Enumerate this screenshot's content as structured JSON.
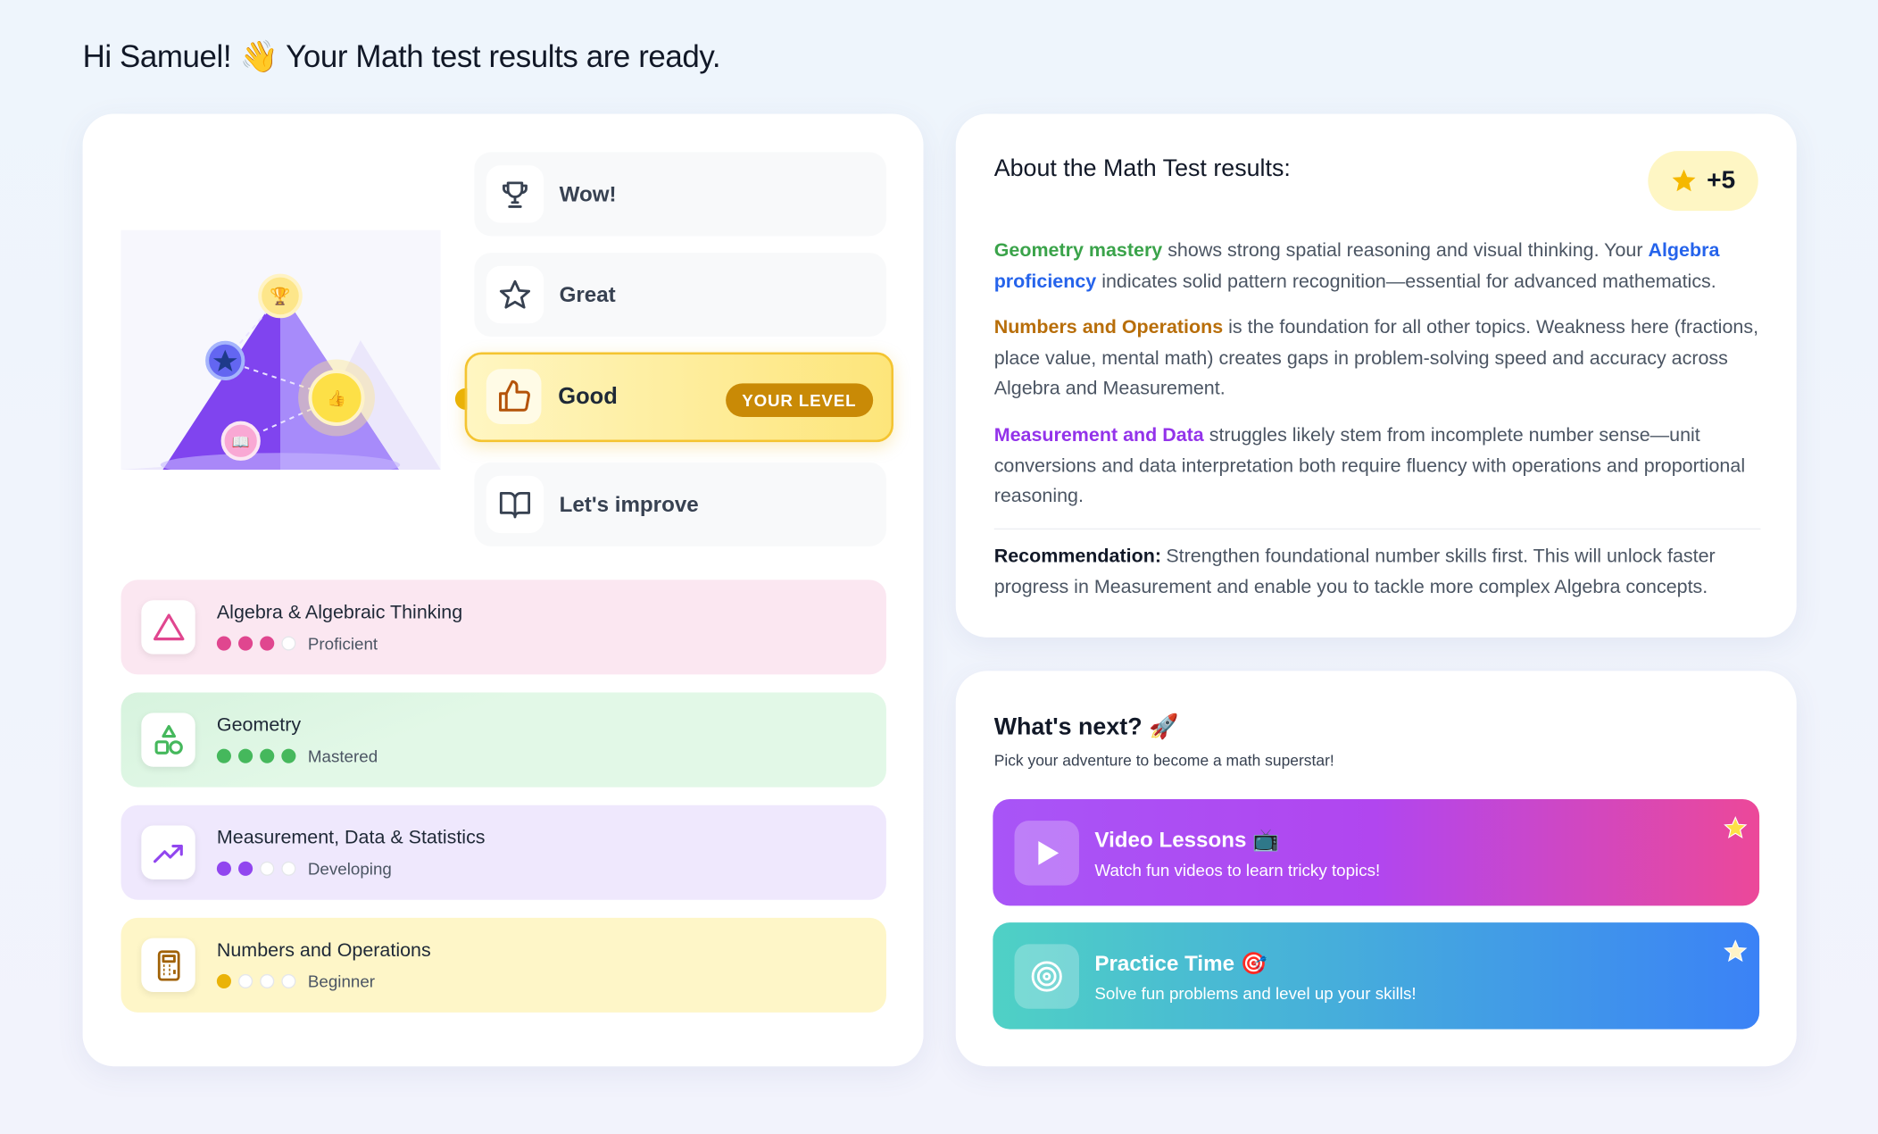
{
  "greeting": "Hi Samuel! 👋 Your Math test results are ready.",
  "levels": [
    {
      "label": "Wow!"
    },
    {
      "label": "Great"
    },
    {
      "label": "Good",
      "badge": "YOUR LEVEL"
    },
    {
      "label": "Let's improve"
    }
  ],
  "skills": [
    {
      "name": "Algebra & Algebraic Thinking",
      "status": "Proficient",
      "filled": 3,
      "total": 4,
      "color": "#e0468f"
    },
    {
      "name": "Geometry",
      "status": "Mastered",
      "filled": 4,
      "total": 4,
      "color": "#45b85c"
    },
    {
      "name": "Measurement, Data & Statistics",
      "status": "Developing",
      "filled": 2,
      "total": 4,
      "color": "#9146ef"
    },
    {
      "name": "Numbers and Operations",
      "status": "Beginner",
      "filled": 1,
      "total": 4,
      "color": "#eab308"
    }
  ],
  "about": {
    "title": "About the Math Test results:",
    "points": "+5",
    "paragraphs": [
      [
        {
          "text": "Geometry mastery",
          "color": "#3aa34a"
        },
        {
          "text": " shows strong spatial reasoning and visual thinking. Your "
        },
        {
          "text": "Algebra proficiency",
          "color": "#2563eb"
        },
        {
          "text": " indicates solid pattern recognition—essential for advanced mathematics."
        }
      ],
      [
        {
          "text": "Numbers and Operations",
          "color": "#b86e0a"
        },
        {
          "text": " is the foundation for all other topics. Weakness here (fractions, place value, mental math) creates gaps in problem-solving speed and accuracy across Algebra and Measurement."
        }
      ],
      [
        {
          "text": "Measurement and Data",
          "color": "#9333ea"
        },
        {
          "text": " struggles likely stem from incomplete number sense—unit conversions and data interpretation both require fluency with operations and proportional reasoning."
        }
      ]
    ],
    "recommendation": {
      "label": "Recommendation:",
      "text": "Strengthen foundational number skills first. This will unlock faster progress in Measurement and enable you to tackle more complex Algebra concepts."
    }
  },
  "next": {
    "title": "What's next? 🚀",
    "subtitle": "Pick your adventure to become a math superstar!",
    "options": [
      {
        "title": "Video Lessons 📺",
        "text": "Watch fun videos to learn tricky topics!"
      },
      {
        "title": "Practice Time 🎯",
        "text": "Solve fun problems and level up your skills!"
      }
    ]
  }
}
